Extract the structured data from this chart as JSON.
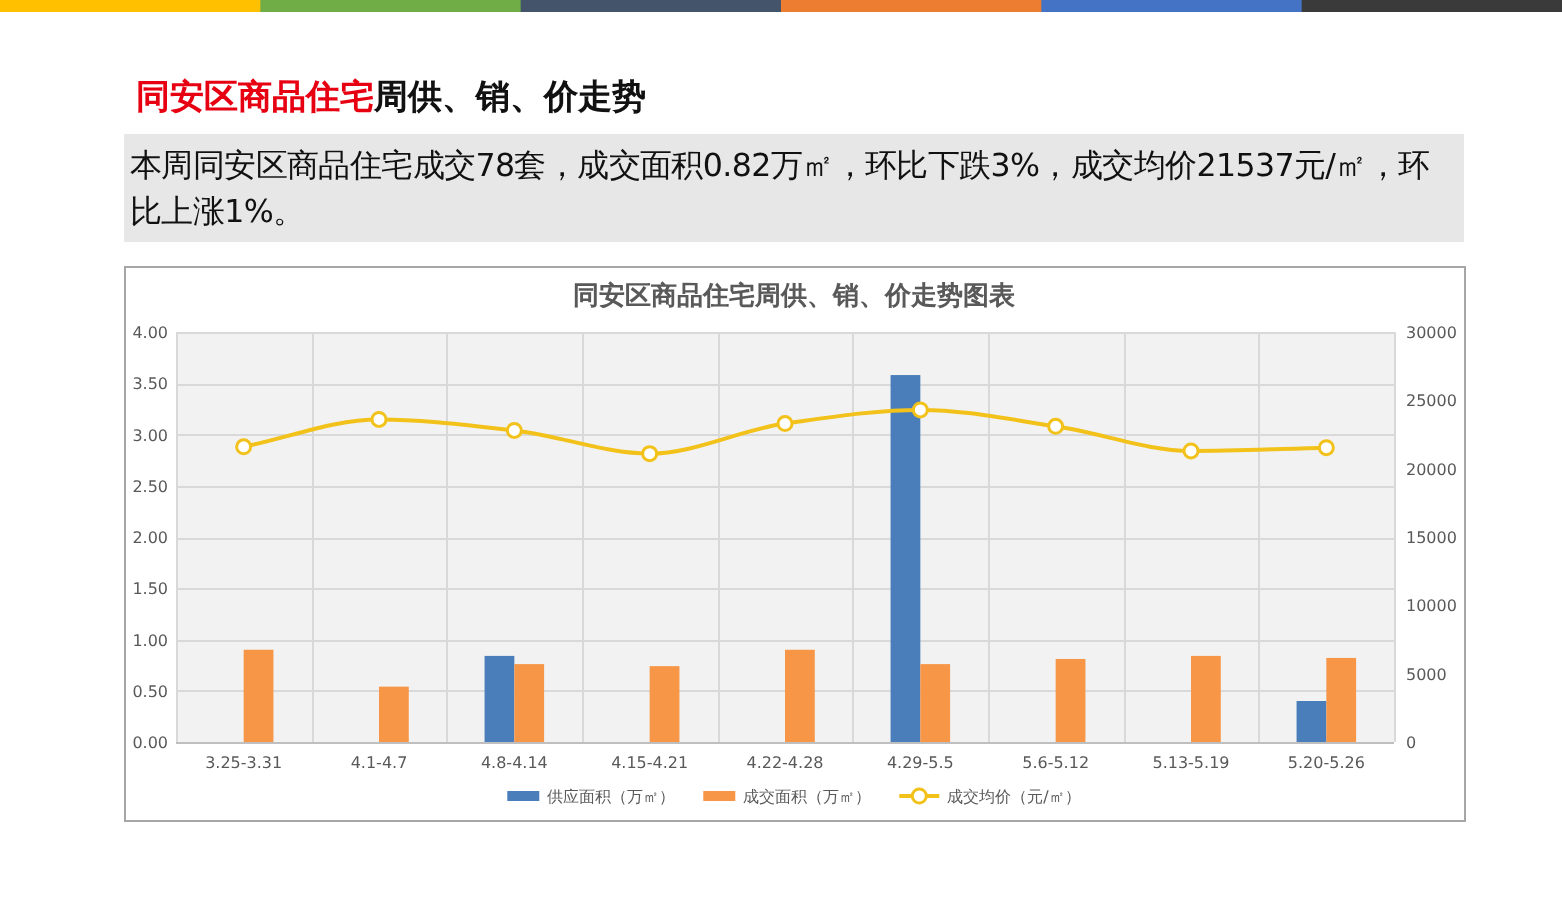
{
  "chart_data": {
    "type": "bar",
    "title": "同安区商品住宅周供、销、价走势图表",
    "annotations": [
      "同安区商品住宅",
      "周供、销、价走势",
      "本周同安区商品住宅成交78套，成交面积0.82万㎡，环比下跌3%，成交均价21537元/㎡，环比上涨1%。"
    ],
    "categories": [
      "3.25-3.31",
      "4.1-4.7",
      "4.8-4.14",
      "4.15-4.21",
      "4.22-4.28",
      "4.29-5.5",
      "5.6-5.12",
      "5.13-5.19",
      "5.20-5.26"
    ],
    "series": [
      {
        "name": "供应面积（万㎡）",
        "color": "#4a7ebb",
        "values": [
          null,
          null,
          0.84,
          null,
          null,
          3.58,
          null,
          null,
          0.4
        ]
      },
      {
        "name": "成交面积（万㎡）",
        "color": "#f79646",
        "values": [
          0.9,
          0.54,
          0.76,
          0.74,
          0.9,
          0.76,
          0.81,
          0.84,
          0.82
        ]
      },
      {
        "name": "成交均价（元/㎡）",
        "type": "line",
        "axis": "y2",
        "color": "#f2c21b",
        "marker": "circle",
        "values": [
          21600,
          23600,
          22800,
          21100,
          23300,
          24300,
          23100,
          21300,
          21537
        ]
      }
    ],
    "ylim": [
      0,
      4
    ],
    "yticks": [
      {
        "value": 0,
        "label": "0.00"
      },
      {
        "value": 0.5,
        "label": "0.50"
      },
      {
        "value": 1,
        "label": "1.00"
      },
      {
        "value": 1.5,
        "label": "1.50"
      },
      {
        "value": 2,
        "label": "2.00"
      },
      {
        "value": 2.5,
        "label": "2.50"
      },
      {
        "value": 3,
        "label": "3.00"
      },
      {
        "value": 3.5,
        "label": "3.50"
      },
      {
        "value": 4,
        "label": "4.00"
      }
    ],
    "y2lim": [
      0,
      30000
    ],
    "y2ticks": [
      0,
      5000,
      10000,
      15000,
      20000,
      25000,
      30000
    ],
    "grid": true,
    "legend": "bottom"
  }
}
